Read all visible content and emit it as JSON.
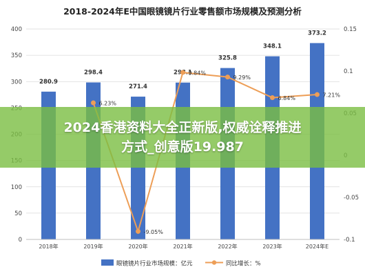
{
  "chart_data": {
    "type": "bar+line",
    "title": "2018-2024年E中国眼镜镜片行业零售额市场规模及预测分析",
    "categories": [
      "2018年",
      "2019年",
      "2020年",
      "2021年",
      "2022年",
      "2023年",
      "2024年E"
    ],
    "series": [
      {
        "name": "眼镜镜片行业市场规模：亿元",
        "type": "bar",
        "axis": "left",
        "values": [
          280.9,
          298.4,
          271.4,
          298.1,
          325.8,
          348.1,
          373.2
        ],
        "labels": [
          "280.9",
          "298.4",
          "271.4",
          "298.1",
          "325.8",
          "348.1",
          "373.2"
        ]
      },
      {
        "name": "同比增长：%",
        "type": "line",
        "axis": "right",
        "values": [
          null,
          6.23,
          -9.05,
          9.84,
          9.29,
          6.84,
          7.21
        ],
        "labels": [
          "",
          "6.23%",
          "-9.05%",
          "9.84%",
          "9.29%",
          "6.84%",
          "7.21%"
        ]
      }
    ],
    "ylim_left": [
      0,
      400
    ],
    "yticks_left": [
      "0",
      "50",
      "100",
      "150",
      "200",
      "250",
      "300",
      "350",
      "400"
    ],
    "ylim_right": [
      -0.1,
      0.15
    ],
    "yticks_right": [
      "-0.1",
      "-0.05",
      "0",
      "0.05",
      "0.1",
      "0.15"
    ],
    "grid": true,
    "legend_position": "bottom",
    "colors": {
      "bar": "#4472C4",
      "line": "#ED9E57",
      "grid": "#d9d9d9"
    }
  },
  "overlay": {
    "lines": [
      "2024香港资料大全正新版,权威诠释推进",
      "方式_创意版19.987"
    ]
  }
}
